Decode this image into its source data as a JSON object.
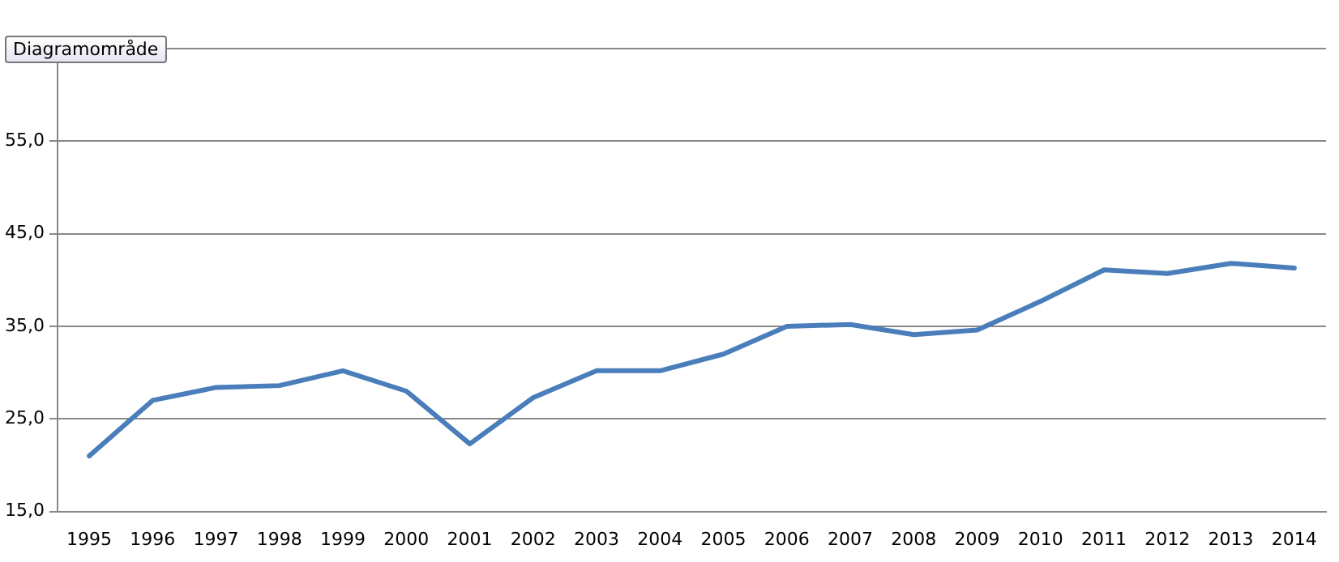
{
  "chart_data": {
    "type": "line",
    "categories": [
      "1995",
      "1996",
      "1997",
      "1998",
      "1999",
      "2000",
      "2001",
      "2002",
      "2003",
      "2004",
      "2005",
      "2006",
      "2007",
      "2008",
      "2009",
      "2010",
      "2011",
      "2012",
      "2013",
      "2014"
    ],
    "series": [
      {
        "color": "#4a7ebb",
        "values": [
          21.0,
          27.0,
          28.4,
          28.6,
          30.2,
          28.0,
          22.3,
          27.3,
          30.2,
          30.2,
          32.0,
          35.0,
          35.2,
          34.1,
          34.6,
          37.7,
          41.1,
          40.7,
          41.8,
          41.3
        ]
      }
    ],
    "ylim": [
      15,
      65
    ],
    "yticks": [
      {
        "value": 15,
        "label": "15,0"
      },
      {
        "value": 25,
        "label": "25,0"
      },
      {
        "value": 35,
        "label": "35,0"
      },
      {
        "value": 45,
        "label": "45,0"
      },
      {
        "value": 55,
        "label": "55,0"
      },
      {
        "value": 65,
        "label": null
      }
    ],
    "grid": "y",
    "legend": false,
    "marker": "none",
    "line_style": "solid",
    "annotations": [
      "Diagramområde"
    ]
  }
}
